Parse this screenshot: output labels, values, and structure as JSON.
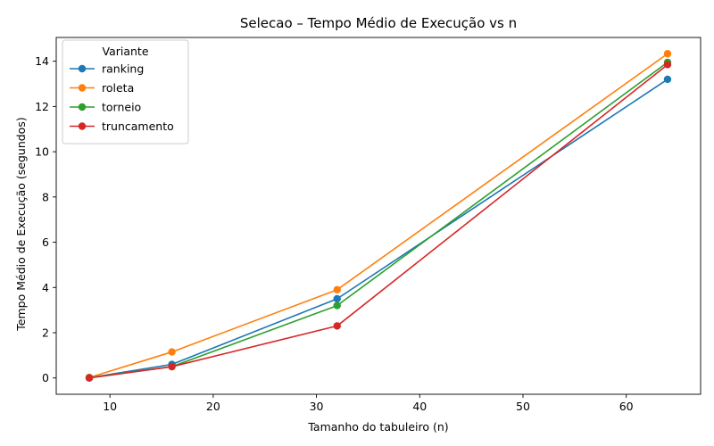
{
  "chart_data": {
    "type": "line",
    "title": "Selecao – Tempo Médio de Execução vs n",
    "xlabel": "Tamanho do tabuleiro (n)",
    "ylabel": "Tempo Médio de Execução (segundos)",
    "xlim": [
      4.8,
      67.2
    ],
    "ylim": [
      -0.72,
      15.05
    ],
    "xticks": [
      10,
      20,
      30,
      40,
      50,
      60
    ],
    "yticks": [
      0,
      2,
      4,
      6,
      8,
      10,
      12,
      14
    ],
    "grid": false,
    "legend": {
      "title": "Variante",
      "placement": "top-left"
    },
    "x": [
      8,
      16,
      32,
      64
    ],
    "series": [
      {
        "name": "ranking",
        "color": "#1f77b4",
        "values": [
          0.01,
          0.6,
          3.5,
          13.2
        ]
      },
      {
        "name": "roleta",
        "color": "#ff7f0e",
        "values": [
          0.02,
          1.15,
          3.9,
          14.33
        ]
      },
      {
        "name": "torneio",
        "color": "#2ca02c",
        "values": [
          0.01,
          0.5,
          3.2,
          13.95
        ]
      },
      {
        "name": "truncamento",
        "color": "#d62728",
        "values": [
          0.0,
          0.5,
          2.3,
          13.85
        ]
      }
    ]
  }
}
